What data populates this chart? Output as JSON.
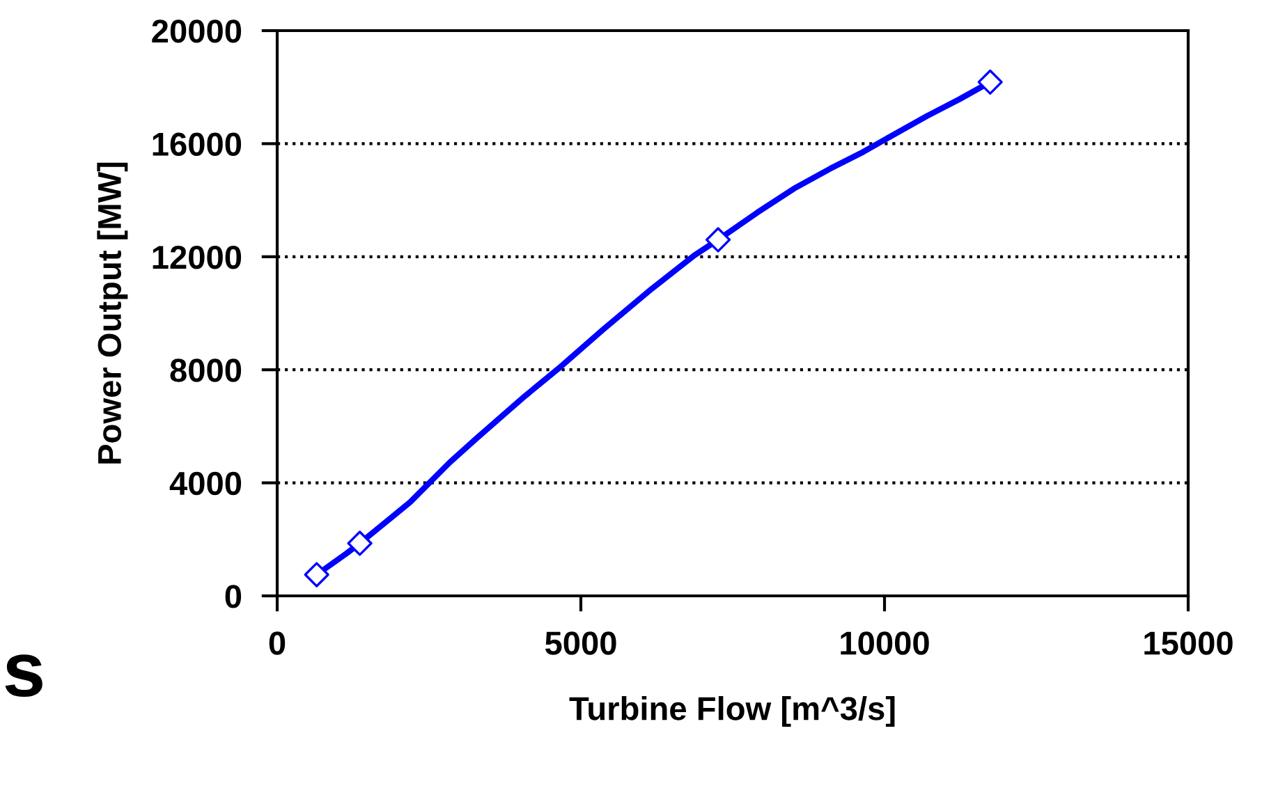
{
  "chart_data": {
    "type": "line",
    "xlabel": "Turbine Flow [m^3/s]",
    "ylabel": "Power Output [MW]",
    "series": [
      {
        "color": "#0000ff",
        "marker": "none",
        "x": [
          650,
          1140,
          1360,
          1890,
          2190,
          2840,
          3280,
          4080,
          4630,
          5370,
          6170,
          6870,
          7260,
          7910,
          8510,
          9100,
          9650,
          10250,
          10700,
          11240,
          11740
        ],
        "values": [
          750,
          1500,
          1860,
          2790,
          3320,
          4720,
          5570,
          7070,
          8040,
          9430,
          10870,
          12050,
          12600,
          13570,
          14410,
          15110,
          15710,
          16440,
          16980,
          17580,
          18180
        ]
      },
      {
        "type": "scatter",
        "color": "#0000ff",
        "marker": "diamond",
        "x": [
          650,
          1360,
          7260,
          11740
        ],
        "values": [
          750,
          1860,
          12600,
          18180
        ]
      }
    ],
    "xlim": [
      0,
      15000
    ],
    "xticks": [
      0,
      5000,
      10000,
      15000
    ],
    "ylim": [
      0,
      20000
    ],
    "yticks": [
      0,
      4000,
      8000,
      12000,
      16000,
      20000
    ],
    "grid": "y",
    "annotations": [
      "s"
    ]
  }
}
